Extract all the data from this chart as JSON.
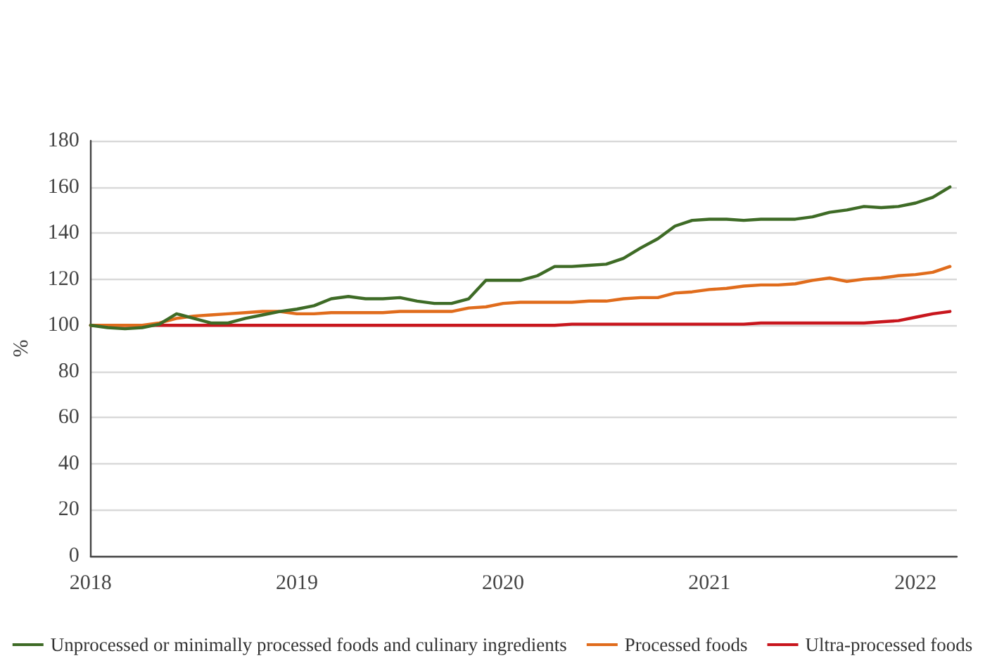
{
  "chart_data": {
    "type": "line",
    "ylabel": "%",
    "x": [
      2018,
      2018.0833,
      2018.1667,
      2018.25,
      2018.3333,
      2018.4167,
      2018.5,
      2018.5833,
      2018.6667,
      2018.75,
      2018.8333,
      2018.9167,
      2019,
      2019.0833,
      2019.1667,
      2019.25,
      2019.3333,
      2019.4167,
      2019.5,
      2019.5833,
      2019.6667,
      2019.75,
      2019.8333,
      2019.9167,
      2020,
      2020.0833,
      2020.1667,
      2020.25,
      2020.3333,
      2020.4167,
      2020.5,
      2020.5833,
      2020.6667,
      2020.75,
      2020.8333,
      2020.9167,
      2021,
      2021.0833,
      2021.1667,
      2021.25,
      2021.3333,
      2021.4167,
      2021.5,
      2021.5833,
      2021.6667,
      2021.75,
      2021.8333,
      2021.9167,
      2022,
      2022.0833,
      2022.1667
    ],
    "series": [
      {
        "name": "Unprocessed or minimally processed foods and culinary ingredients",
        "color": "#3e6b26",
        "values": [
          100,
          99,
          98.5,
          99,
          100.5,
          105,
          103,
          101,
          101,
          103,
          104.5,
          106,
          107,
          108.5,
          111.5,
          112.5,
          111.5,
          111.5,
          112,
          110.5,
          109.5,
          109.5,
          111.5,
          119.5,
          119.5,
          119.5,
          121.5,
          125.5,
          125.5,
          126,
          126.5,
          129,
          133.5,
          137.5,
          143,
          145.5,
          146,
          146,
          145.5,
          146,
          146,
          146,
          147,
          149,
          150,
          151.5,
          151,
          151.5,
          153,
          155.5,
          160
        ]
      },
      {
        "name": "Processed foods",
        "color": "#e06c1c",
        "values": [
          100,
          100,
          100,
          100,
          101,
          103,
          104,
          104.5,
          105,
          105.5,
          106,
          106,
          105,
          105,
          105.5,
          105.5,
          105.5,
          105.5,
          106,
          106,
          106,
          106,
          107.5,
          108,
          109.5,
          110,
          110,
          110,
          110,
          110.5,
          110.5,
          111.5,
          112,
          112,
          114,
          114.5,
          115.5,
          116,
          117,
          117.5,
          117.5,
          118,
          119.5,
          120.5,
          119,
          120,
          120.5,
          121.5,
          122,
          123,
          125.5
        ]
      },
      {
        "name": "Ultra-processed foods",
        "color": "#c8161d",
        "values": [
          100,
          100,
          100,
          100,
          100,
          100,
          100,
          100,
          100,
          100,
          100,
          100,
          100,
          100,
          100,
          100,
          100,
          100,
          100,
          100,
          100,
          100,
          100,
          100,
          100,
          100,
          100,
          100,
          100.5,
          100.5,
          100.5,
          100.5,
          100.5,
          100.5,
          100.5,
          100.5,
          100.5,
          100.5,
          100.5,
          101,
          101,
          101,
          101,
          101,
          101,
          101,
          101.5,
          102,
          103.5,
          105,
          106
        ]
      }
    ],
    "xlim": [
      2018,
      2022.2
    ],
    "xticks": [
      2018,
      2019,
      2020,
      2021,
      2022
    ],
    "ylim": [
      0,
      180
    ],
    "yticks": [
      0,
      20,
      40,
      60,
      80,
      100,
      120,
      140,
      160,
      180
    ],
    "grid": "y",
    "legend": "bottom",
    "marker": "none",
    "line_style": "solid"
  }
}
